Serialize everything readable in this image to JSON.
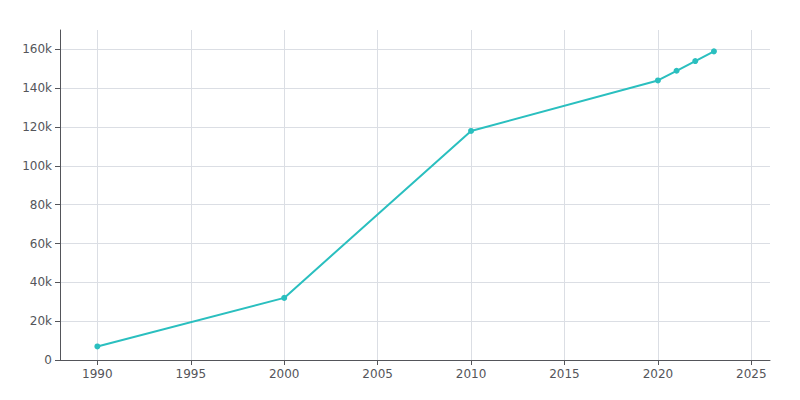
{
  "chart_data": {
    "type": "line",
    "x": [
      1990,
      2000,
      2010,
      2020,
      2021,
      2022,
      2023
    ],
    "values": [
      7000,
      32000,
      118000,
      144000,
      149000,
      154000,
      159000
    ],
    "color": "#2abfbf",
    "marker": "circle",
    "xlim": [
      1988,
      2026
    ],
    "ylim": [
      0,
      170000
    ],
    "xticks": [
      1990,
      1995,
      2000,
      2005,
      2010,
      2015,
      2020,
      2025
    ],
    "yticks": [
      0,
      {
        "value": 20000,
        "label": "20k"
      },
      {
        "value": 40000,
        "label": "40k"
      },
      {
        "value": 60000,
        "label": "60k"
      },
      {
        "value": 80000,
        "label": "80k"
      },
      {
        "value": 100000,
        "label": "100k"
      },
      {
        "value": 120000,
        "label": "120k"
      },
      {
        "value": 140000,
        "label": "140k"
      },
      {
        "value": 160000,
        "label": "160k"
      }
    ],
    "grid": true
  }
}
